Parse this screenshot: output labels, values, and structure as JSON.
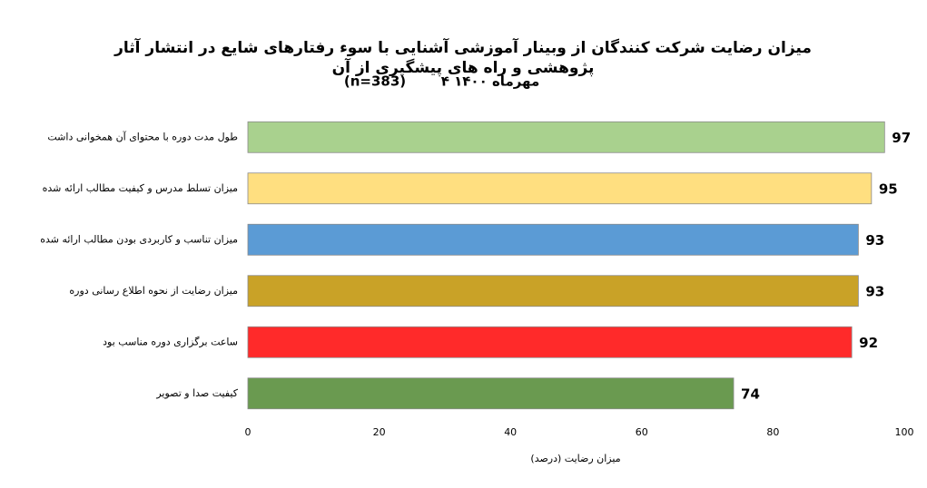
{
  "chart_data": {
    "type": "bar",
    "orientation": "horizontal",
    "title": "میزان رضایت شرکت کنندگان از وبینار آموزشی آشنایی با سوء رفتارهای شایع در انتشار آثار پژوهشی و راه های پیشگیری از آن",
    "subtitle": "۴ مهرماه ۱۴۰۰",
    "sample_size": "(n=383)",
    "x_axis_label": "میزان رضایت (درصد)",
    "categories": [
      "طول مدت دوره با محتوای آن همخوانی داشت",
      "میزان تسلط مدرس و کیفیت مطالب ارائه شده",
      "میزان تناسب و کاربردی بودن مطالب ارائه شده",
      "میزان رضایت از نحوه اطلاع رسانی دوره",
      "ساعت برگزاری دوره مناسب بود",
      "کیفیت صدا و تصویر"
    ],
    "values": [
      97,
      95,
      93,
      93,
      92,
      74
    ],
    "colors": [
      "#a9d18e",
      "#ffdf80",
      "#5b9bd5",
      "#c9a227",
      "#ff2a2a",
      "#6a9a50"
    ],
    "xlim": [
      0,
      100
    ],
    "xticks": [
      0,
      20,
      40,
      60,
      80,
      100
    ],
    "grid": false
  }
}
